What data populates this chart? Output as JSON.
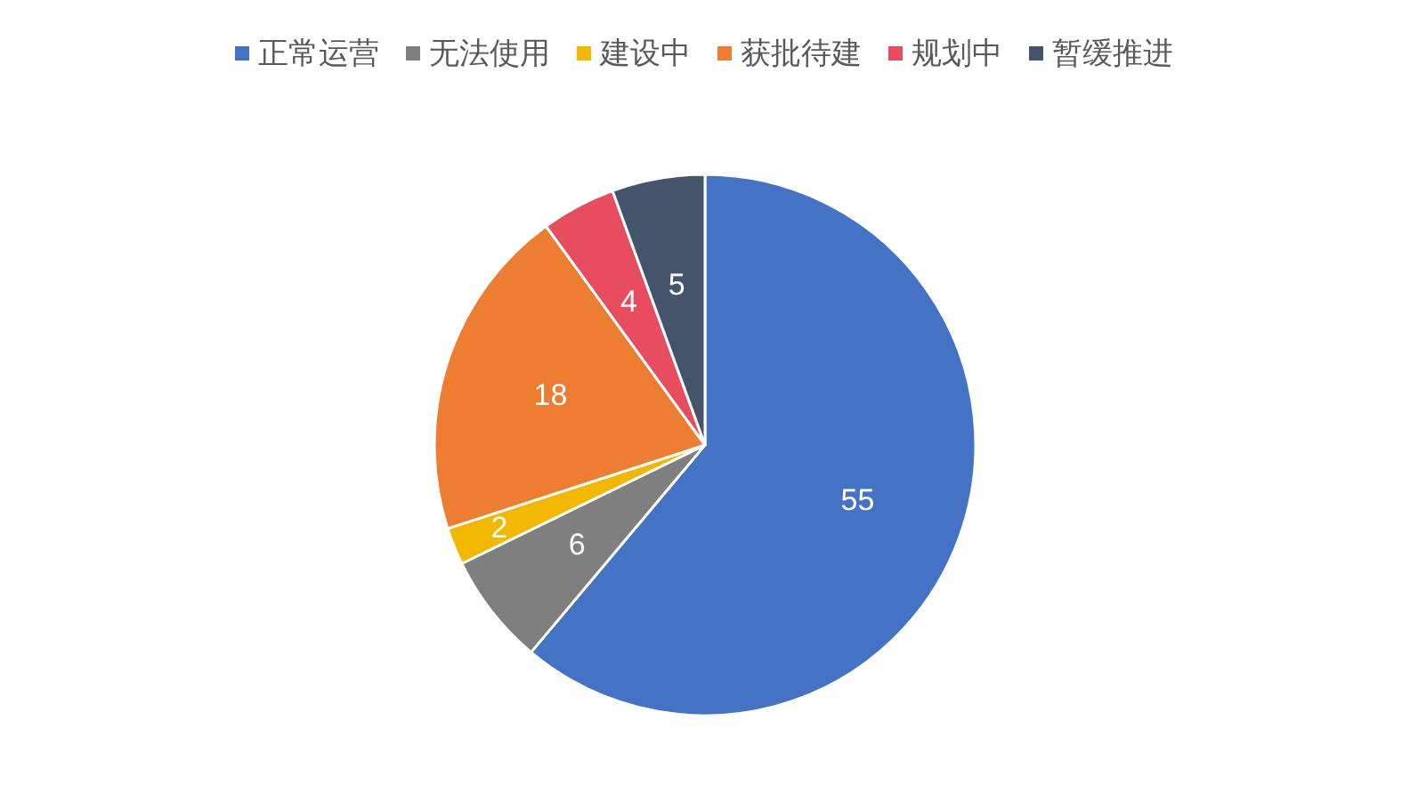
{
  "chart_data": {
    "type": "pie",
    "categories": [
      "正常运营",
      "无法使用",
      "建设中",
      "获批待建",
      "规划中",
      "暂缓推进"
    ],
    "values": [
      55,
      6,
      2,
      18,
      4,
      5
    ],
    "colors": [
      "#4472c4",
      "#7f7f7f",
      "#f2b800",
      "#ed7d31",
      "#e84c5f",
      "#44546a"
    ],
    "data_labels": true,
    "legend": "top"
  }
}
